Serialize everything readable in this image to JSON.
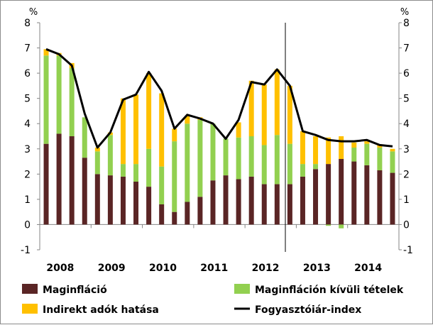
{
  "chart_data": {
    "type": "bar",
    "stacked": true,
    "left_unit": "%",
    "right_unit": "%",
    "ylim": [
      -1,
      8
    ],
    "yticks": [
      "-1",
      "0",
      "1",
      "2",
      "3",
      "4",
      "5",
      "6",
      "7",
      "8"
    ],
    "year_labels": [
      "2008",
      "2009",
      "2010",
      "2011",
      "2012",
      "2013",
      "2014"
    ],
    "series": [
      {
        "name": "Maginfláció",
        "color": "#5a2525",
        "values": [
          3.2,
          3.6,
          3.5,
          2.65,
          2.0,
          1.95,
          1.9,
          1.7,
          1.5,
          0.8,
          0.5,
          0.9,
          1.1,
          1.75,
          1.95,
          1.8,
          1.9,
          1.6,
          1.6,
          1.6,
          1.9,
          2.2,
          2.4,
          2.6,
          2.5,
          2.35,
          2.15,
          2.05
        ]
      },
      {
        "name": "Maginfláción kívüli tételek",
        "color": "#92d050",
        "values": [
          3.5,
          3.1,
          2.7,
          1.6,
          0.9,
          1.6,
          0.5,
          0.7,
          1.5,
          1.5,
          2.8,
          3.1,
          3.05,
          2.25,
          1.45,
          1.65,
          1.6,
          1.55,
          1.95,
          1.6,
          0.5,
          0.2,
          -0.05,
          -0.15,
          0.55,
          0.85,
          0.9,
          0.85
        ]
      },
      {
        "name": "Indirekt adók hatása",
        "color": "#ffc000",
        "values": [
          0.25,
          0.1,
          0.2,
          0.0,
          0.15,
          0.1,
          2.6,
          2.75,
          3.0,
          2.9,
          0.5,
          0.3,
          0.1,
          0.0,
          0.0,
          0.6,
          2.2,
          2.4,
          2.6,
          2.3,
          1.3,
          1.1,
          1.05,
          0.9,
          0.2,
          0.1,
          0.1,
          0.1
        ]
      }
    ],
    "line": {
      "name": "Fogyasztóiár-index",
      "color": "#000000",
      "values": [
        6.95,
        6.75,
        6.3,
        4.4,
        3.05,
        3.65,
        4.95,
        5.15,
        6.05,
        5.3,
        3.8,
        4.35,
        4.2,
        4.0,
        3.4,
        4.15,
        5.65,
        5.55,
        6.15,
        5.5,
        3.7,
        3.55,
        3.35,
        3.3,
        3.3,
        3.35,
        3.15,
        3.1
      ]
    }
  }
}
